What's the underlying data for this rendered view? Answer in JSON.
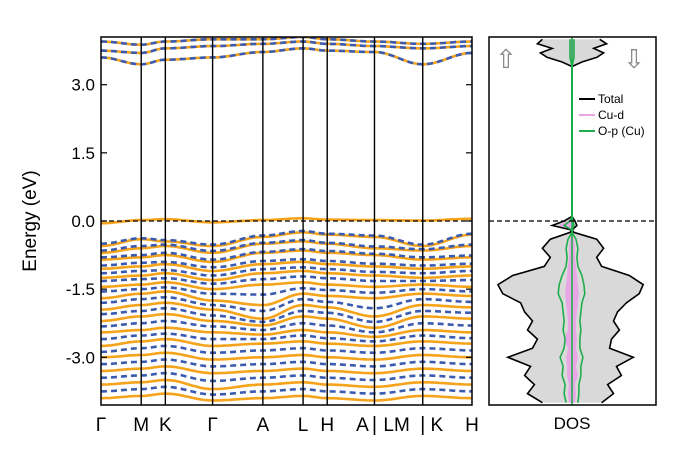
{
  "chart_data": [
    {
      "type": "line",
      "title": "",
      "ylabel": "Energy (eV)",
      "xlabel": "",
      "ylim": [
        -4.05,
        4.05
      ],
      "yticks": [
        "3.0",
        "1.5",
        "0.0",
        "-1.5",
        "-3.0"
      ],
      "ytick_values": [
        3.0,
        1.5,
        0.0,
        -1.5,
        -3.0
      ],
      "fermi_level": 0.0,
      "kpath_labels": [
        "Γ",
        "M",
        "K",
        "Γ",
        "A",
        "L",
        "H",
        "A",
        "|",
        "LM",
        "|",
        "K",
        "H"
      ],
      "kpath_label_positions": [
        0,
        0.4,
        0.64,
        1.11,
        1.61,
        2.01,
        2.25,
        2.6,
        2.72,
        2.94,
        3.2,
        3.34,
        3.69
      ],
      "kpoint_distances": [
        0,
        0.4,
        0.64,
        1.11,
        1.61,
        2.01,
        2.25,
        2.72,
        3.2,
        3.69
      ],
      "colors": {
        "spin_up": "#f5a31a",
        "spin_down": "#3a5bb0",
        "fermi": "#000000"
      },
      "series": [
        {
          "spin": "up",
          "style": "solid",
          "bands": [
            [
              3.6,
              3.45,
              3.55,
              3.6,
              3.72,
              3.8,
              3.75,
              3.72,
              3.45,
              3.7
            ],
            [
              3.75,
              3.7,
              3.8,
              3.85,
              3.9,
              3.95,
              3.9,
              3.85,
              3.8,
              3.85
            ],
            [
              3.95,
              3.88,
              3.95,
              4.0,
              4.0,
              4.05,
              4.0,
              3.95,
              3.9,
              3.95
            ],
            [
              -0.05,
              0.02,
              0.04,
              -0.03,
              0.02,
              0.06,
              0.03,
              0.02,
              0.01,
              0.05
            ],
            [
              -0.55,
              -0.4,
              -0.45,
              -0.55,
              -0.35,
              -0.25,
              -0.3,
              -0.35,
              -0.55,
              -0.3
            ],
            [
              -0.7,
              -0.6,
              -0.55,
              -0.7,
              -0.5,
              -0.45,
              -0.5,
              -0.6,
              -0.65,
              -0.55
            ],
            [
              -0.85,
              -0.8,
              -0.75,
              -0.9,
              -0.7,
              -0.65,
              -0.7,
              -0.75,
              -0.85,
              -0.8
            ],
            [
              -1.05,
              -1.0,
              -0.95,
              -1.1,
              -0.95,
              -0.9,
              -0.95,
              -1.0,
              -1.05,
              -1.0
            ],
            [
              -1.25,
              -1.2,
              -1.15,
              -1.3,
              -1.15,
              -1.1,
              -1.15,
              -1.2,
              -1.25,
              -1.2
            ],
            [
              -1.45,
              -1.4,
              -1.35,
              -1.5,
              -1.4,
              -1.35,
              -1.4,
              -1.45,
              -1.4,
              -1.45
            ],
            [
              -1.7,
              -1.6,
              -1.55,
              -1.75,
              -1.85,
              -1.6,
              -1.65,
              -1.7,
              -1.6,
              -1.65
            ],
            [
              -1.95,
              -1.85,
              -1.8,
              -1.95,
              -2.15,
              -1.85,
              -1.9,
              -2.1,
              -1.85,
              -1.9
            ],
            [
              -2.2,
              -2.1,
              -2.05,
              -2.2,
              -2.3,
              -2.1,
              -2.15,
              -2.35,
              -2.1,
              -2.15
            ],
            [
              -2.45,
              -2.4,
              -2.35,
              -2.45,
              -2.5,
              -2.4,
              -2.45,
              -2.55,
              -2.4,
              -2.45
            ],
            [
              -2.75,
              -2.65,
              -2.6,
              -2.75,
              -2.7,
              -2.65,
              -2.7,
              -2.75,
              -2.65,
              -2.7
            ],
            [
              -3.0,
              -2.95,
              -2.9,
              -3.05,
              -3.0,
              -2.95,
              -3.0,
              -3.05,
              -2.95,
              -3.0
            ],
            [
              -3.3,
              -3.25,
              -3.2,
              -3.35,
              -3.3,
              -3.25,
              -3.3,
              -3.35,
              -3.25,
              -3.3
            ],
            [
              -3.6,
              -3.55,
              -3.5,
              -3.7,
              -3.6,
              -3.55,
              -3.6,
              -3.65,
              -3.55,
              -3.6
            ],
            [
              -3.9,
              -3.85,
              -3.8,
              -3.95,
              -3.9,
              -3.85,
              -3.9,
              -3.95,
              -3.85,
              -3.9
            ]
          ]
        },
        {
          "spin": "down",
          "style": "dashed",
          "bands": [
            [
              3.6,
              3.45,
              3.55,
              3.6,
              3.72,
              3.8,
              3.75,
              3.72,
              3.45,
              3.7
            ],
            [
              3.75,
              3.7,
              3.8,
              3.85,
              3.9,
              3.95,
              3.9,
              3.85,
              3.8,
              3.85
            ],
            [
              3.95,
              3.88,
              3.95,
              4.0,
              4.0,
              4.05,
              4.0,
              3.95,
              3.9,
              3.95
            ],
            [
              -0.5,
              -0.38,
              -0.42,
              -0.52,
              -0.32,
              -0.22,
              -0.28,
              -0.32,
              -0.52,
              -0.28
            ],
            [
              -0.65,
              -0.55,
              -0.52,
              -0.66,
              -0.48,
              -0.42,
              -0.48,
              -0.56,
              -0.62,
              -0.52
            ],
            [
              -0.8,
              -0.75,
              -0.7,
              -0.85,
              -0.68,
              -0.62,
              -0.66,
              -0.72,
              -0.8,
              -0.76
            ],
            [
              -0.98,
              -0.92,
              -0.9,
              -1.02,
              -0.88,
              -0.84,
              -0.88,
              -0.94,
              -0.98,
              -0.94
            ],
            [
              -1.15,
              -1.1,
              -1.08,
              -1.2,
              -1.06,
              -1.02,
              -1.06,
              -1.12,
              -1.15,
              -1.1
            ],
            [
              -1.32,
              -1.28,
              -1.26,
              -1.38,
              -1.28,
              -1.22,
              -1.26,
              -1.32,
              -1.32,
              -1.3
            ],
            [
              -1.55,
              -1.5,
              -1.46,
              -1.6,
              -1.62,
              -1.48,
              -1.52,
              -1.58,
              -1.5,
              -1.55
            ],
            [
              -1.8,
              -1.72,
              -1.68,
              -1.85,
              -1.98,
              -1.72,
              -1.78,
              -1.92,
              -1.72,
              -1.78
            ],
            [
              -2.05,
              -1.98,
              -1.92,
              -2.08,
              -2.22,
              -1.98,
              -2.02,
              -2.22,
              -1.98,
              -2.02
            ],
            [
              -2.32,
              -2.25,
              -2.2,
              -2.32,
              -2.4,
              -2.25,
              -2.3,
              -2.45,
              -2.25,
              -2.3
            ],
            [
              -2.6,
              -2.52,
              -2.48,
              -2.6,
              -2.6,
              -2.52,
              -2.58,
              -2.65,
              -2.52,
              -2.58
            ],
            [
              -2.88,
              -2.8,
              -2.75,
              -2.9,
              -2.85,
              -2.8,
              -2.85,
              -2.9,
              -2.8,
              -2.85
            ],
            [
              -3.15,
              -3.1,
              -3.05,
              -3.2,
              -3.15,
              -3.1,
              -3.15,
              -3.2,
              -3.1,
              -3.15
            ],
            [
              -3.45,
              -3.4,
              -3.35,
              -3.52,
              -3.45,
              -3.4,
              -3.45,
              -3.5,
              -3.4,
              -3.45
            ],
            [
              -3.75,
              -3.7,
              -3.65,
              -3.82,
              -3.75,
              -3.7,
              -3.75,
              -3.8,
              -3.7,
              -3.75
            ]
          ]
        }
      ]
    },
    {
      "type": "area",
      "title": "",
      "xlabel": "DOS",
      "ylim": [
        -4.05,
        4.05
      ],
      "xlim": [
        -85,
        85
      ],
      "legend": {
        "placement": "right",
        "entries": [
          {
            "name": "Total",
            "color": "#000000"
          },
          {
            "name": "Cu-d",
            "color": "#e9a6e6"
          },
          {
            "name": "O-p (Cu)",
            "color": "#1fae4b"
          }
        ]
      },
      "spin_labels": {
        "up": "⇧",
        "down": "⇩"
      },
      "fill_color": "#d9d9d9",
      "energy": [
        -4.0,
        -3.8,
        -3.6,
        -3.4,
        -3.2,
        -3.0,
        -2.8,
        -2.6,
        -2.4,
        -2.2,
        -2.0,
        -1.8,
        -1.6,
        -1.4,
        -1.2,
        -1.0,
        -0.8,
        -0.6,
        -0.4,
        -0.25,
        -0.2,
        -0.1,
        0.0,
        0.1,
        3.4,
        3.5,
        3.6,
        3.7,
        3.8,
        3.9,
        4.0
      ],
      "total_up": [
        30,
        45,
        38,
        48,
        42,
        65,
        40,
        35,
        45,
        40,
        48,
        52,
        70,
        75,
        60,
        28,
        22,
        30,
        22,
        2,
        0,
        20,
        8,
        0,
        0,
        10,
        25,
        32,
        20,
        35,
        30
      ],
      "total_down": [
        30,
        42,
        36,
        50,
        45,
        62,
        38,
        40,
        48,
        42,
        46,
        55,
        68,
        72,
        58,
        30,
        25,
        32,
        25,
        2,
        0,
        5,
        3,
        0,
        0,
        10,
        25,
        32,
        22,
        35,
        28
      ],
      "cu_d_up": [
        3,
        4,
        3,
        5,
        5,
        6,
        4,
        8,
        4,
        4,
        5,
        6,
        7,
        6,
        5,
        4,
        3,
        3,
        2,
        0,
        0,
        14,
        4,
        0,
        0,
        1,
        2,
        2,
        2,
        2,
        2
      ],
      "cu_d_down": [
        3,
        4,
        3,
        6,
        4,
        6,
        4,
        5,
        4,
        4,
        5,
        6,
        7,
        6,
        5,
        4,
        3,
        3,
        2,
        0,
        0,
        2,
        1,
        0,
        0,
        1,
        2,
        2,
        2,
        2,
        2
      ],
      "o_p_up": [
        6,
        8,
        7,
        10,
        9,
        12,
        8,
        7,
        9,
        8,
        9,
        10,
        14,
        13,
        10,
        6,
        5,
        6,
        4,
        0,
        0,
        8,
        2,
        0,
        0,
        1,
        2,
        2,
        2,
        2,
        2
      ],
      "o_p_down": [
        6,
        7,
        7,
        9,
        9,
        11,
        8,
        8,
        9,
        8,
        9,
        10,
        13,
        12,
        10,
        6,
        5,
        6,
        4,
        0,
        0,
        2,
        1,
        0,
        0,
        1,
        2,
        2,
        2,
        2,
        2
      ]
    }
  ]
}
